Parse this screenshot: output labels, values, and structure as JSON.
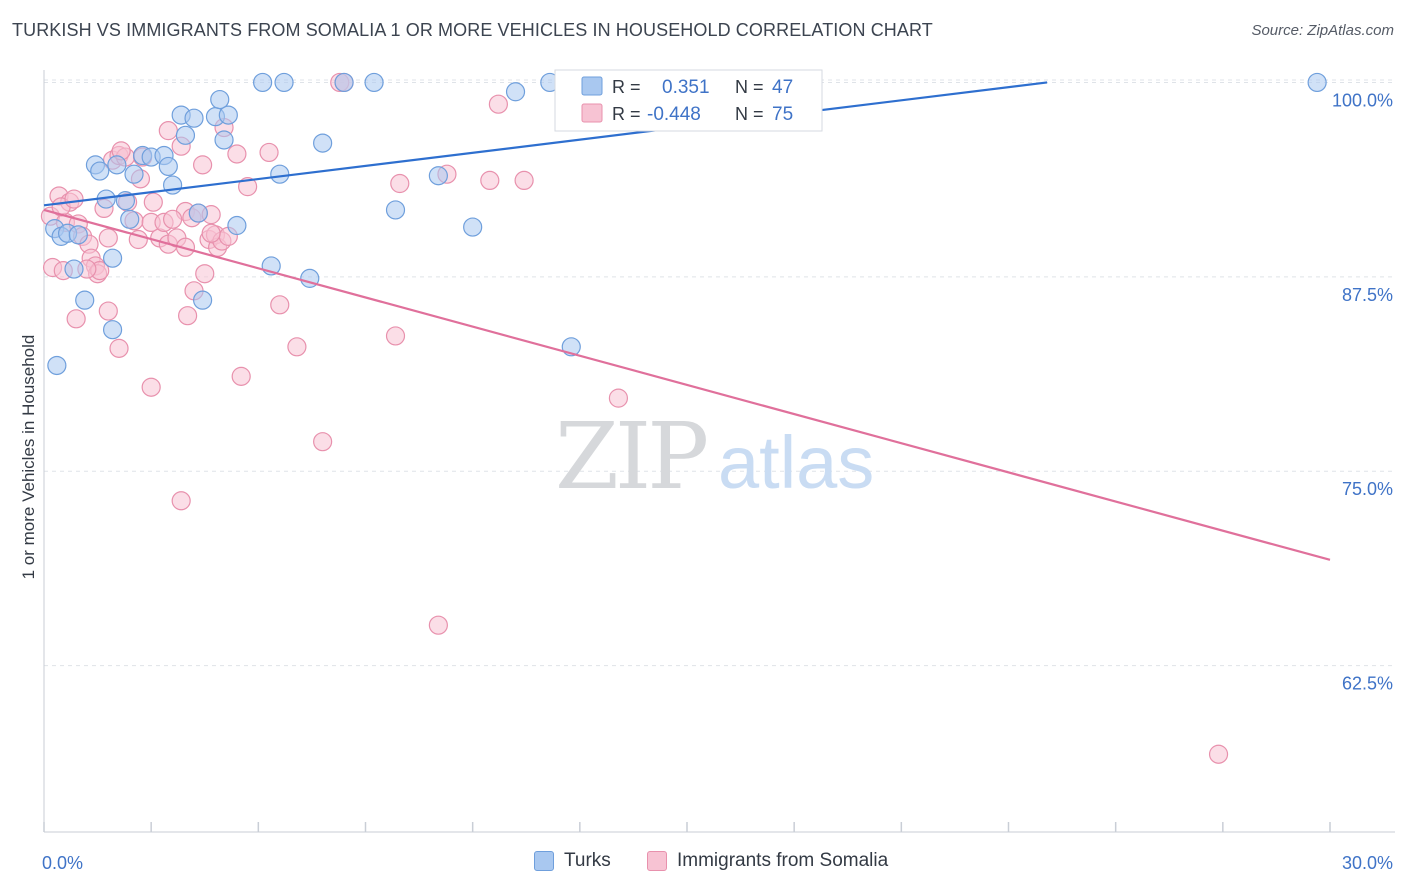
{
  "title": "TURKISH VS IMMIGRANTS FROM SOMALIA 1 OR MORE VEHICLES IN HOUSEHOLD CORRELATION CHART",
  "source": "Source: ZipAtlas.com",
  "watermark": {
    "zip": "ZIP",
    "atlas": "atlas"
  },
  "colors": {
    "turks_fill": "#a9c8f0",
    "turks_stroke": "#6f9fdc",
    "turks_line": "#2e6fcf",
    "somalia_fill": "#f7c3d3",
    "somalia_stroke": "#e891ad",
    "somalia_line": "#e0709b",
    "axis_label": "#3f73c7",
    "grid": "#dfe3e8"
  },
  "legend_box": {
    "rows": [
      {
        "r_label": "R =",
        "r_value": "0.351",
        "n_label": "N =",
        "n_value": "47"
      },
      {
        "r_label": "R =",
        "r_value": "-0.448",
        "n_label": "N =",
        "n_value": "75"
      }
    ]
  },
  "legend_bottom": {
    "turks": "Turks",
    "somalia": "Immigrants from Somalia"
  },
  "chart_data": {
    "type": "scatter",
    "title": "TURKISH VS IMMIGRANTS FROM SOMALIA 1 OR MORE VEHICLES IN HOUSEHOLD CORRELATION CHART",
    "xlabel": "",
    "ylabel": "1 or more Vehicles in Household",
    "xlim": [
      0,
      30
    ],
    "ylim": [
      52,
      101
    ],
    "x_tick_labels": [
      "0.0%",
      "30.0%"
    ],
    "y_ticks": [
      62.5,
      75.0,
      87.5,
      100.0
    ],
    "y_tick_labels": [
      "62.5%",
      "75.0%",
      "87.5%",
      "100.0%"
    ],
    "grid": true,
    "legend_position": "top-center",
    "series": [
      {
        "name": "Turks",
        "R": 0.351,
        "N": 47,
        "trend": {
          "x": [
            0.0,
            23.4
          ],
          "y": [
            92.1,
            100.0
          ]
        },
        "points": [
          [
            0.25,
            90.6
          ],
          [
            0.4,
            90.1
          ],
          [
            0.55,
            90.3
          ],
          [
            0.8,
            90.2
          ],
          [
            0.7,
            88.0
          ],
          [
            0.95,
            86.0
          ],
          [
            1.6,
            88.7
          ],
          [
            1.6,
            84.1
          ],
          [
            1.2,
            94.7
          ],
          [
            1.3,
            94.3
          ],
          [
            1.7,
            94.7
          ],
          [
            1.45,
            92.5
          ],
          [
            1.9,
            92.4
          ],
          [
            2.1,
            94.1
          ],
          [
            2.3,
            95.3
          ],
          [
            2.5,
            95.2
          ],
          [
            2.8,
            95.3
          ],
          [
            2.9,
            94.6
          ],
          [
            3.0,
            93.4
          ],
          [
            3.2,
            97.9
          ],
          [
            3.3,
            96.6
          ],
          [
            3.5,
            97.7
          ],
          [
            3.6,
            91.6
          ],
          [
            3.7,
            86.0
          ],
          [
            4.0,
            97.8
          ],
          [
            4.1,
            98.9
          ],
          [
            4.2,
            96.3
          ],
          [
            4.3,
            97.9
          ],
          [
            4.5,
            90.8
          ],
          [
            5.1,
            100.0
          ],
          [
            5.3,
            88.2
          ],
          [
            5.5,
            94.1
          ],
          [
            5.6,
            100.0
          ],
          [
            6.2,
            87.4
          ],
          [
            6.5,
            96.1
          ],
          [
            7.0,
            100.0
          ],
          [
            7.7,
            100.0
          ],
          [
            8.2,
            91.8
          ],
          [
            9.2,
            94.0
          ],
          [
            10.0,
            90.7
          ],
          [
            11.0,
            99.4
          ],
          [
            11.8,
            100.0
          ],
          [
            12.2,
            100.0
          ],
          [
            12.3,
            83.0
          ],
          [
            29.7,
            100.0
          ],
          [
            0.3,
            81.8
          ],
          [
            2.0,
            91.2
          ]
        ]
      },
      {
        "name": "Immigrants from Somalia",
        "R": -0.448,
        "N": 75,
        "trend": {
          "x": [
            0.0,
            30.0
          ],
          "y": [
            91.8,
            69.3
          ]
        },
        "points": [
          [
            0.15,
            91.4
          ],
          [
            0.2,
            88.1
          ],
          [
            0.35,
            92.7
          ],
          [
            0.45,
            87.9
          ],
          [
            0.5,
            91.0
          ],
          [
            0.6,
            92.3
          ],
          [
            0.75,
            84.8
          ],
          [
            0.8,
            90.9
          ],
          [
            0.9,
            90.1
          ],
          [
            1.05,
            89.6
          ],
          [
            1.1,
            88.7
          ],
          [
            1.2,
            88.2
          ],
          [
            1.25,
            87.7
          ],
          [
            1.3,
            87.9
          ],
          [
            1.4,
            91.9
          ],
          [
            1.5,
            90.0
          ],
          [
            1.5,
            85.3
          ],
          [
            1.6,
            95.0
          ],
          [
            1.75,
            95.3
          ],
          [
            1.75,
            82.9
          ],
          [
            1.9,
            95.2
          ],
          [
            1.95,
            92.3
          ],
          [
            2.1,
            91.1
          ],
          [
            2.25,
            93.8
          ],
          [
            2.3,
            95.2
          ],
          [
            2.5,
            91.0
          ],
          [
            2.55,
            92.3
          ],
          [
            2.5,
            80.4
          ],
          [
            2.7,
            90.0
          ],
          [
            2.8,
            91.0
          ],
          [
            2.9,
            89.6
          ],
          [
            2.9,
            96.9
          ],
          [
            3.1,
            90.0
          ],
          [
            3.2,
            95.9
          ],
          [
            3.3,
            91.7
          ],
          [
            3.3,
            89.4
          ],
          [
            3.35,
            85.0
          ],
          [
            3.45,
            91.3
          ],
          [
            3.5,
            86.6
          ],
          [
            3.6,
            91.6
          ],
          [
            3.7,
            94.7
          ],
          [
            3.75,
            87.7
          ],
          [
            3.85,
            89.9
          ],
          [
            3.9,
            91.5
          ],
          [
            4.0,
            90.2
          ],
          [
            4.05,
            89.4
          ],
          [
            4.15,
            89.8
          ],
          [
            4.2,
            97.1
          ],
          [
            4.3,
            90.1
          ],
          [
            4.5,
            95.4
          ],
          [
            4.6,
            81.1
          ],
          [
            4.75,
            93.3
          ],
          [
            5.25,
            95.5
          ],
          [
            5.5,
            85.7
          ],
          [
            5.9,
            83.0
          ],
          [
            6.5,
            76.9
          ],
          [
            6.9,
            100.0
          ],
          [
            7.0,
            100.0
          ],
          [
            8.2,
            83.7
          ],
          [
            8.3,
            93.5
          ],
          [
            9.2,
            65.1
          ],
          [
            9.4,
            94.1
          ],
          [
            10.4,
            93.7
          ],
          [
            10.6,
            98.6
          ],
          [
            11.2,
            93.7
          ],
          [
            13.4,
            79.7
          ],
          [
            27.4,
            56.8
          ],
          [
            3.2,
            73.1
          ],
          [
            1.0,
            88.0
          ],
          [
            0.4,
            92.0
          ],
          [
            2.2,
            89.9
          ],
          [
            3.0,
            91.2
          ],
          [
            1.8,
            95.6
          ],
          [
            3.9,
            90.3
          ],
          [
            0.7,
            92.5
          ]
        ]
      }
    ]
  }
}
